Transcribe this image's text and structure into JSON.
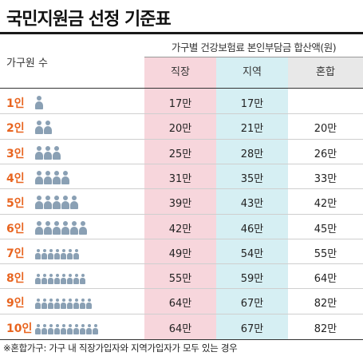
{
  "title": "국민지원금 선정 기준표",
  "header": {
    "household_label": "가구원 수",
    "group_label": "가구별 건강보험료 본인부담금 합산액(원)",
    "columns": [
      "직장",
      "지역",
      "혼합"
    ]
  },
  "rows": [
    {
      "label": "1인",
      "people": 1,
      "work": "17만",
      "region": "17만",
      "mixed": ""
    },
    {
      "label": "2인",
      "people": 2,
      "work": "20만",
      "region": "21만",
      "mixed": "20만"
    },
    {
      "label": "3인",
      "people": 3,
      "work": "25만",
      "region": "28만",
      "mixed": "26만"
    },
    {
      "label": "4인",
      "people": 4,
      "work": "31만",
      "region": "35만",
      "mixed": "33만"
    },
    {
      "label": "5인",
      "people": 5,
      "work": "39만",
      "region": "43만",
      "mixed": "42만"
    },
    {
      "label": "6인",
      "people": 6,
      "work": "42만",
      "region": "46만",
      "mixed": "45만"
    },
    {
      "label": "7인",
      "people": 7,
      "work": "49만",
      "region": "54만",
      "mixed": "55만"
    },
    {
      "label": "8인",
      "people": 8,
      "work": "55만",
      "region": "59만",
      "mixed": "64만"
    },
    {
      "label": "9인",
      "people": 9,
      "work": "64만",
      "region": "67만",
      "mixed": "82만"
    },
    {
      "label": "10인",
      "people": 10,
      "work": "64만",
      "region": "67만",
      "mixed": "82만"
    }
  ],
  "footnote": "※혼합가구: 가구 내 직장가입자와 지역가입자가 모두 있는 경우",
  "colors": {
    "accent": "#e8641f",
    "work_column": "#f7d6dc",
    "region_column": "#d6eff3",
    "mixed_header": "#e8e8e8",
    "person_icon": "#8aa0b4"
  }
}
